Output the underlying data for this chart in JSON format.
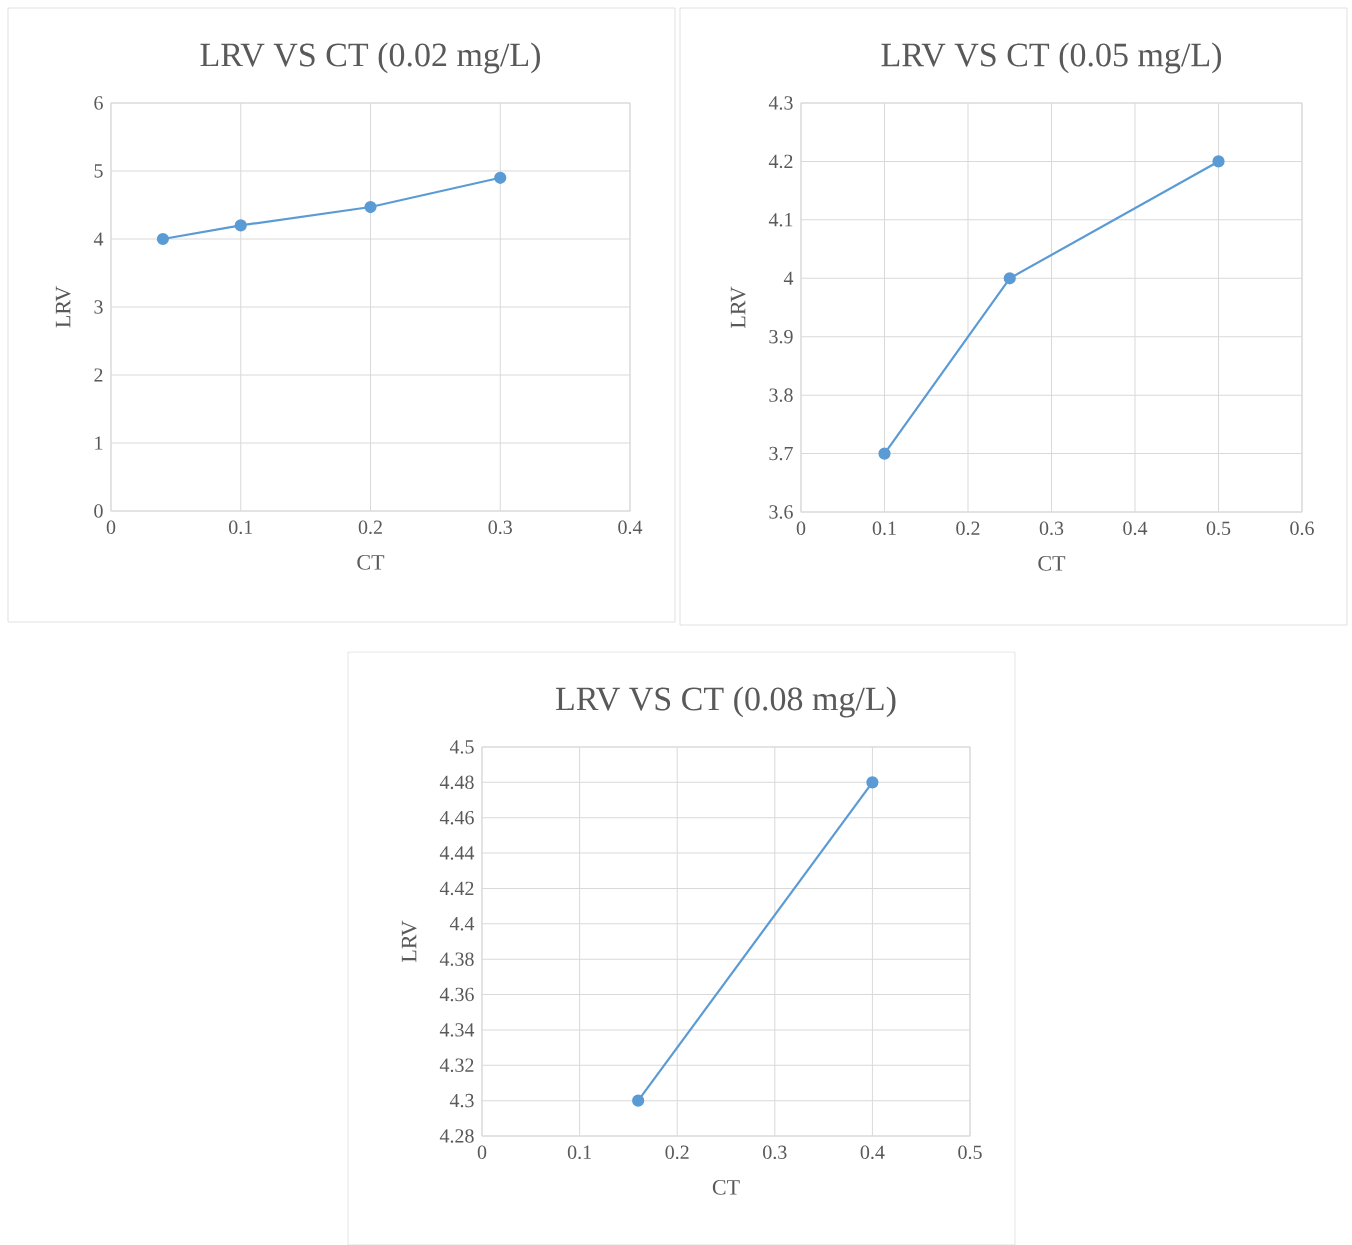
{
  "chart_data": [
    {
      "type": "line",
      "title": "LRV VS CT (0.02 mg/L)",
      "xlabel": "CT",
      "ylabel": "LRV",
      "x": [
        0.04,
        0.1,
        0.2,
        0.3
      ],
      "series": [
        {
          "color": "#5b9bd5",
          "values": [
            4.0,
            4.2,
            4.47,
            4.9
          ]
        }
      ],
      "xlim": [
        0,
        0.4
      ],
      "ylim": [
        0,
        6
      ],
      "xticks": [
        0,
        0.1,
        0.2,
        0.3,
        0.4
      ],
      "yticks": [
        0,
        1,
        2,
        3,
        4,
        5,
        6
      ],
      "grid": true,
      "marker": "circle",
      "line_style": "solid"
    },
    {
      "type": "line",
      "title": "LRV VS CT (0.05 mg/L)",
      "xlabel": "CT",
      "ylabel": "LRV",
      "x": [
        0.1,
        0.25,
        0.5
      ],
      "series": [
        {
          "color": "#5b9bd5",
          "values": [
            3.7,
            4.0,
            4.2
          ]
        }
      ],
      "xlim": [
        0,
        0.6
      ],
      "ylim": [
        3.6,
        4.3
      ],
      "xticks": [
        0,
        0.1,
        0.2,
        0.3,
        0.4,
        0.5,
        0.6
      ],
      "yticks": [
        3.6,
        3.7,
        3.8,
        3.9,
        4,
        4.1,
        4.2,
        4.3
      ],
      "grid": true,
      "marker": "circle",
      "line_style": "solid"
    },
    {
      "type": "line",
      "title": "LRV VS CT (0.08 mg/L)",
      "xlabel": "CT",
      "ylabel": "LRV",
      "x": [
        0.16,
        0.4
      ],
      "series": [
        {
          "color": "#5b9bd5",
          "values": [
            4.3,
            4.48
          ]
        }
      ],
      "xlim": [
        0,
        0.5
      ],
      "ylim": [
        4.28,
        4.5
      ],
      "xticks": [
        0,
        0.1,
        0.2,
        0.3,
        0.4,
        0.5
      ],
      "yticks": [
        4.28,
        4.3,
        4.32,
        4.34,
        4.36,
        4.38,
        4.4,
        4.42,
        4.44,
        4.46,
        4.48,
        4.5
      ],
      "grid": true,
      "marker": "circle",
      "line_style": "solid"
    }
  ]
}
